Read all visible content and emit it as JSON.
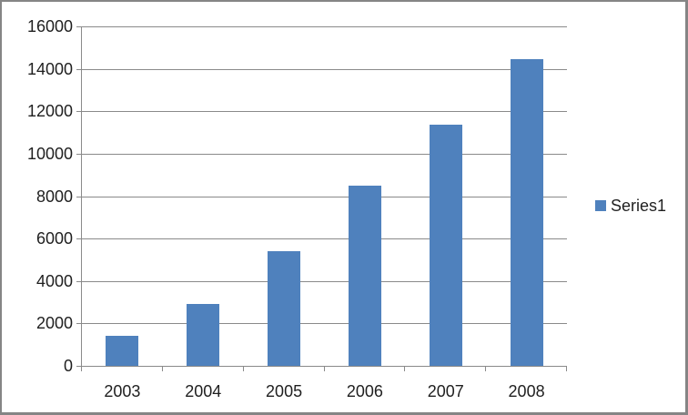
{
  "chart_data": {
    "type": "bar",
    "title": "",
    "xlabel": "",
    "ylabel": "",
    "categories": [
      "2003",
      "2004",
      "2005",
      "2006",
      "2007",
      "2008"
    ],
    "series": [
      {
        "name": "Series1",
        "values": [
          1400,
          2900,
          5400,
          8500,
          11350,
          14450
        ]
      }
    ],
    "ylim": [
      0,
      16000
    ],
    "yticks": [
      0,
      2000,
      4000,
      6000,
      8000,
      10000,
      12000,
      14000,
      16000
    ],
    "grid": true,
    "legend_position": "right",
    "legend_entries": [
      "Series1"
    ],
    "colors": {
      "bar": "#4F81BD",
      "gridline": "#8A8A8A",
      "axis_line": "#8A8A8A",
      "tick_text": "#1F1F1F",
      "frame_border": "#858585",
      "background": "#FFFFFF"
    }
  }
}
